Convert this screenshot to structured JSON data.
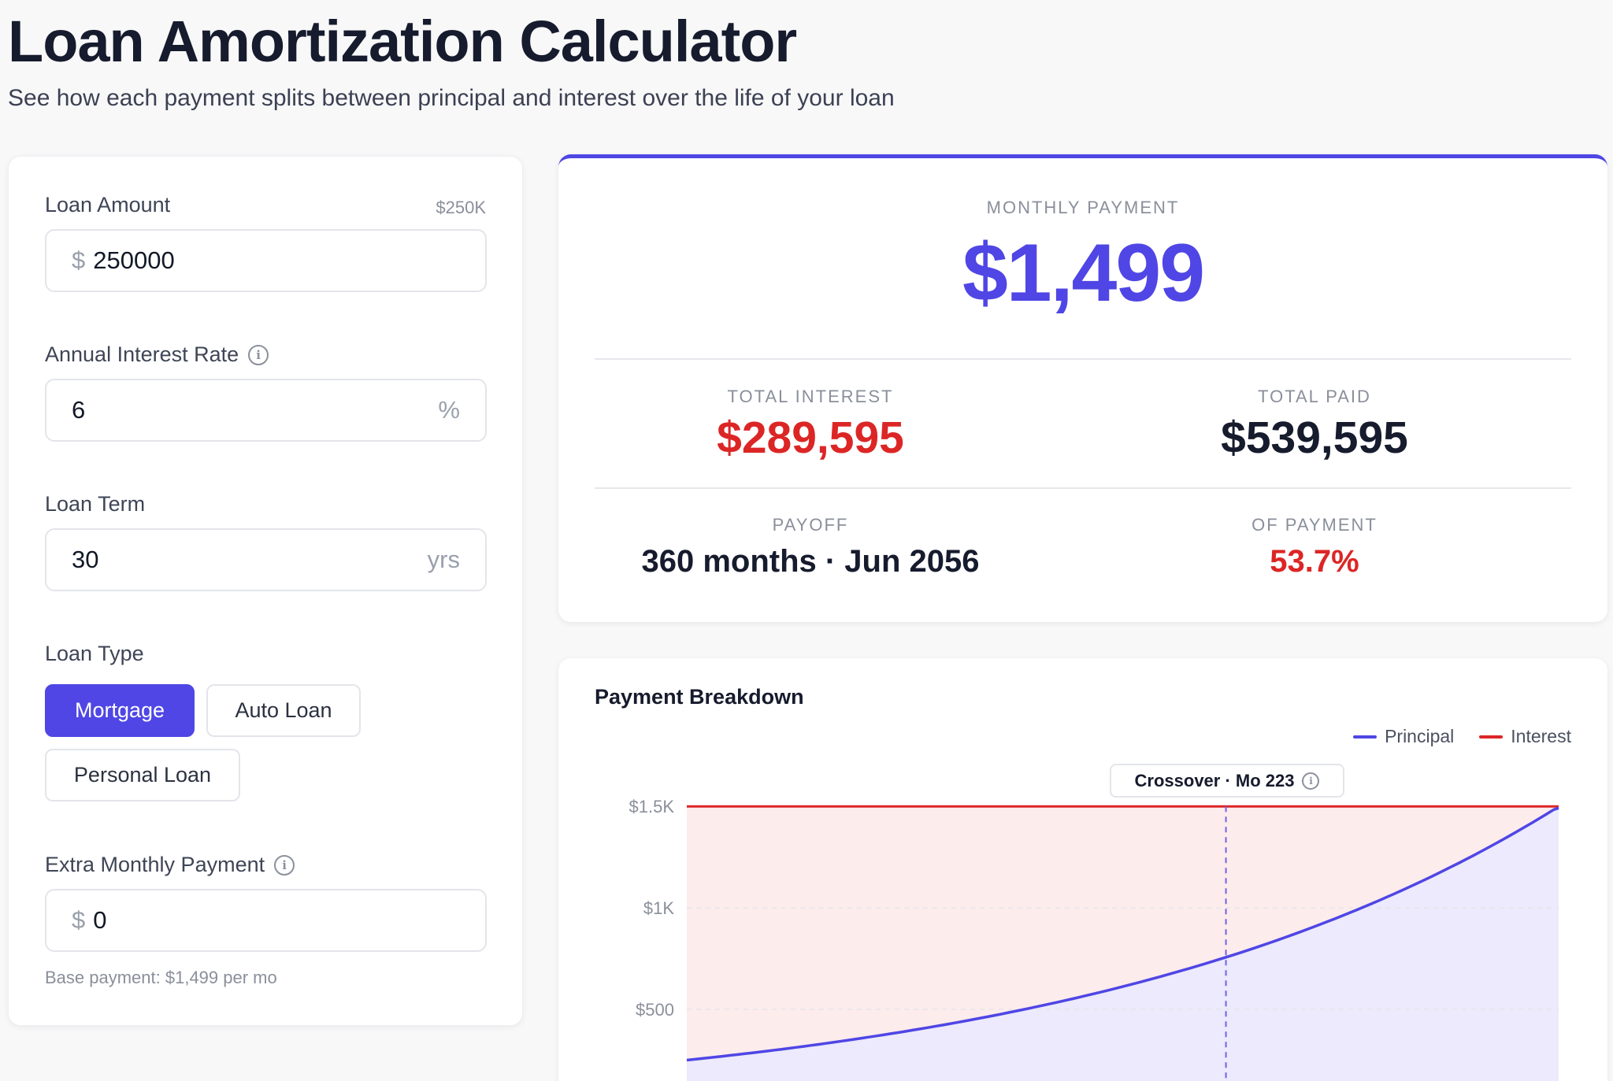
{
  "header": {
    "title": "Loan Amortization Calculator",
    "subtitle": "See how each payment splits between principal and interest over the life of your loan"
  },
  "form": {
    "loan_amount": {
      "label": "Loan Amount",
      "hint": "$250K",
      "prefix": "$",
      "value": "250000"
    },
    "interest_rate": {
      "label": "Annual Interest Rate",
      "value": "6",
      "suffix": "%"
    },
    "loan_term": {
      "label": "Loan Term",
      "value": "30",
      "suffix": "yrs"
    },
    "loan_type": {
      "label": "Loan Type",
      "options": [
        "Mortgage",
        "Auto Loan",
        "Personal Loan"
      ],
      "selected": "Mortgage"
    },
    "extra_payment": {
      "label": "Extra Monthly Payment",
      "prefix": "$",
      "value": "0"
    },
    "base_note": "Base payment: $1,499 per mo"
  },
  "summary": {
    "monthly_label": "Monthly Payment",
    "monthly_value": "$1,499",
    "total_interest_label": "Total Interest",
    "total_interest_value": "$289,595",
    "total_paid_label": "Total Paid",
    "total_paid_value": "$539,595",
    "payoff_label": "Payoff",
    "payoff_value": "360 months · Jun 2056",
    "of_payment_label": "Of Payment",
    "of_payment_value": "53.7%"
  },
  "colors": {
    "accent": "#4f46e5",
    "interest": "#dc2626",
    "dark": "#161b2d"
  },
  "chart": {
    "title": "Payment Breakdown",
    "legend": [
      "Principal",
      "Interest"
    ],
    "crossover_label": "Crossover · Mo 223",
    "y_ticks": [
      "$1.5K",
      "$1K",
      "$500"
    ]
  },
  "chart_data": {
    "type": "area",
    "title": "Payment Breakdown",
    "series": [
      {
        "name": "Principal",
        "monthly_rate": 0.005,
        "months": 360,
        "start_value": 250,
        "end_value": 1491,
        "color": "#4f46e5"
      },
      {
        "name": "Interest",
        "total_payment": 1499,
        "color": "#dc2626"
      }
    ],
    "y_ticks": [
      500,
      1000,
      1500
    ],
    "crossover_month": 223,
    "ylim": [
      0,
      1500
    ]
  }
}
